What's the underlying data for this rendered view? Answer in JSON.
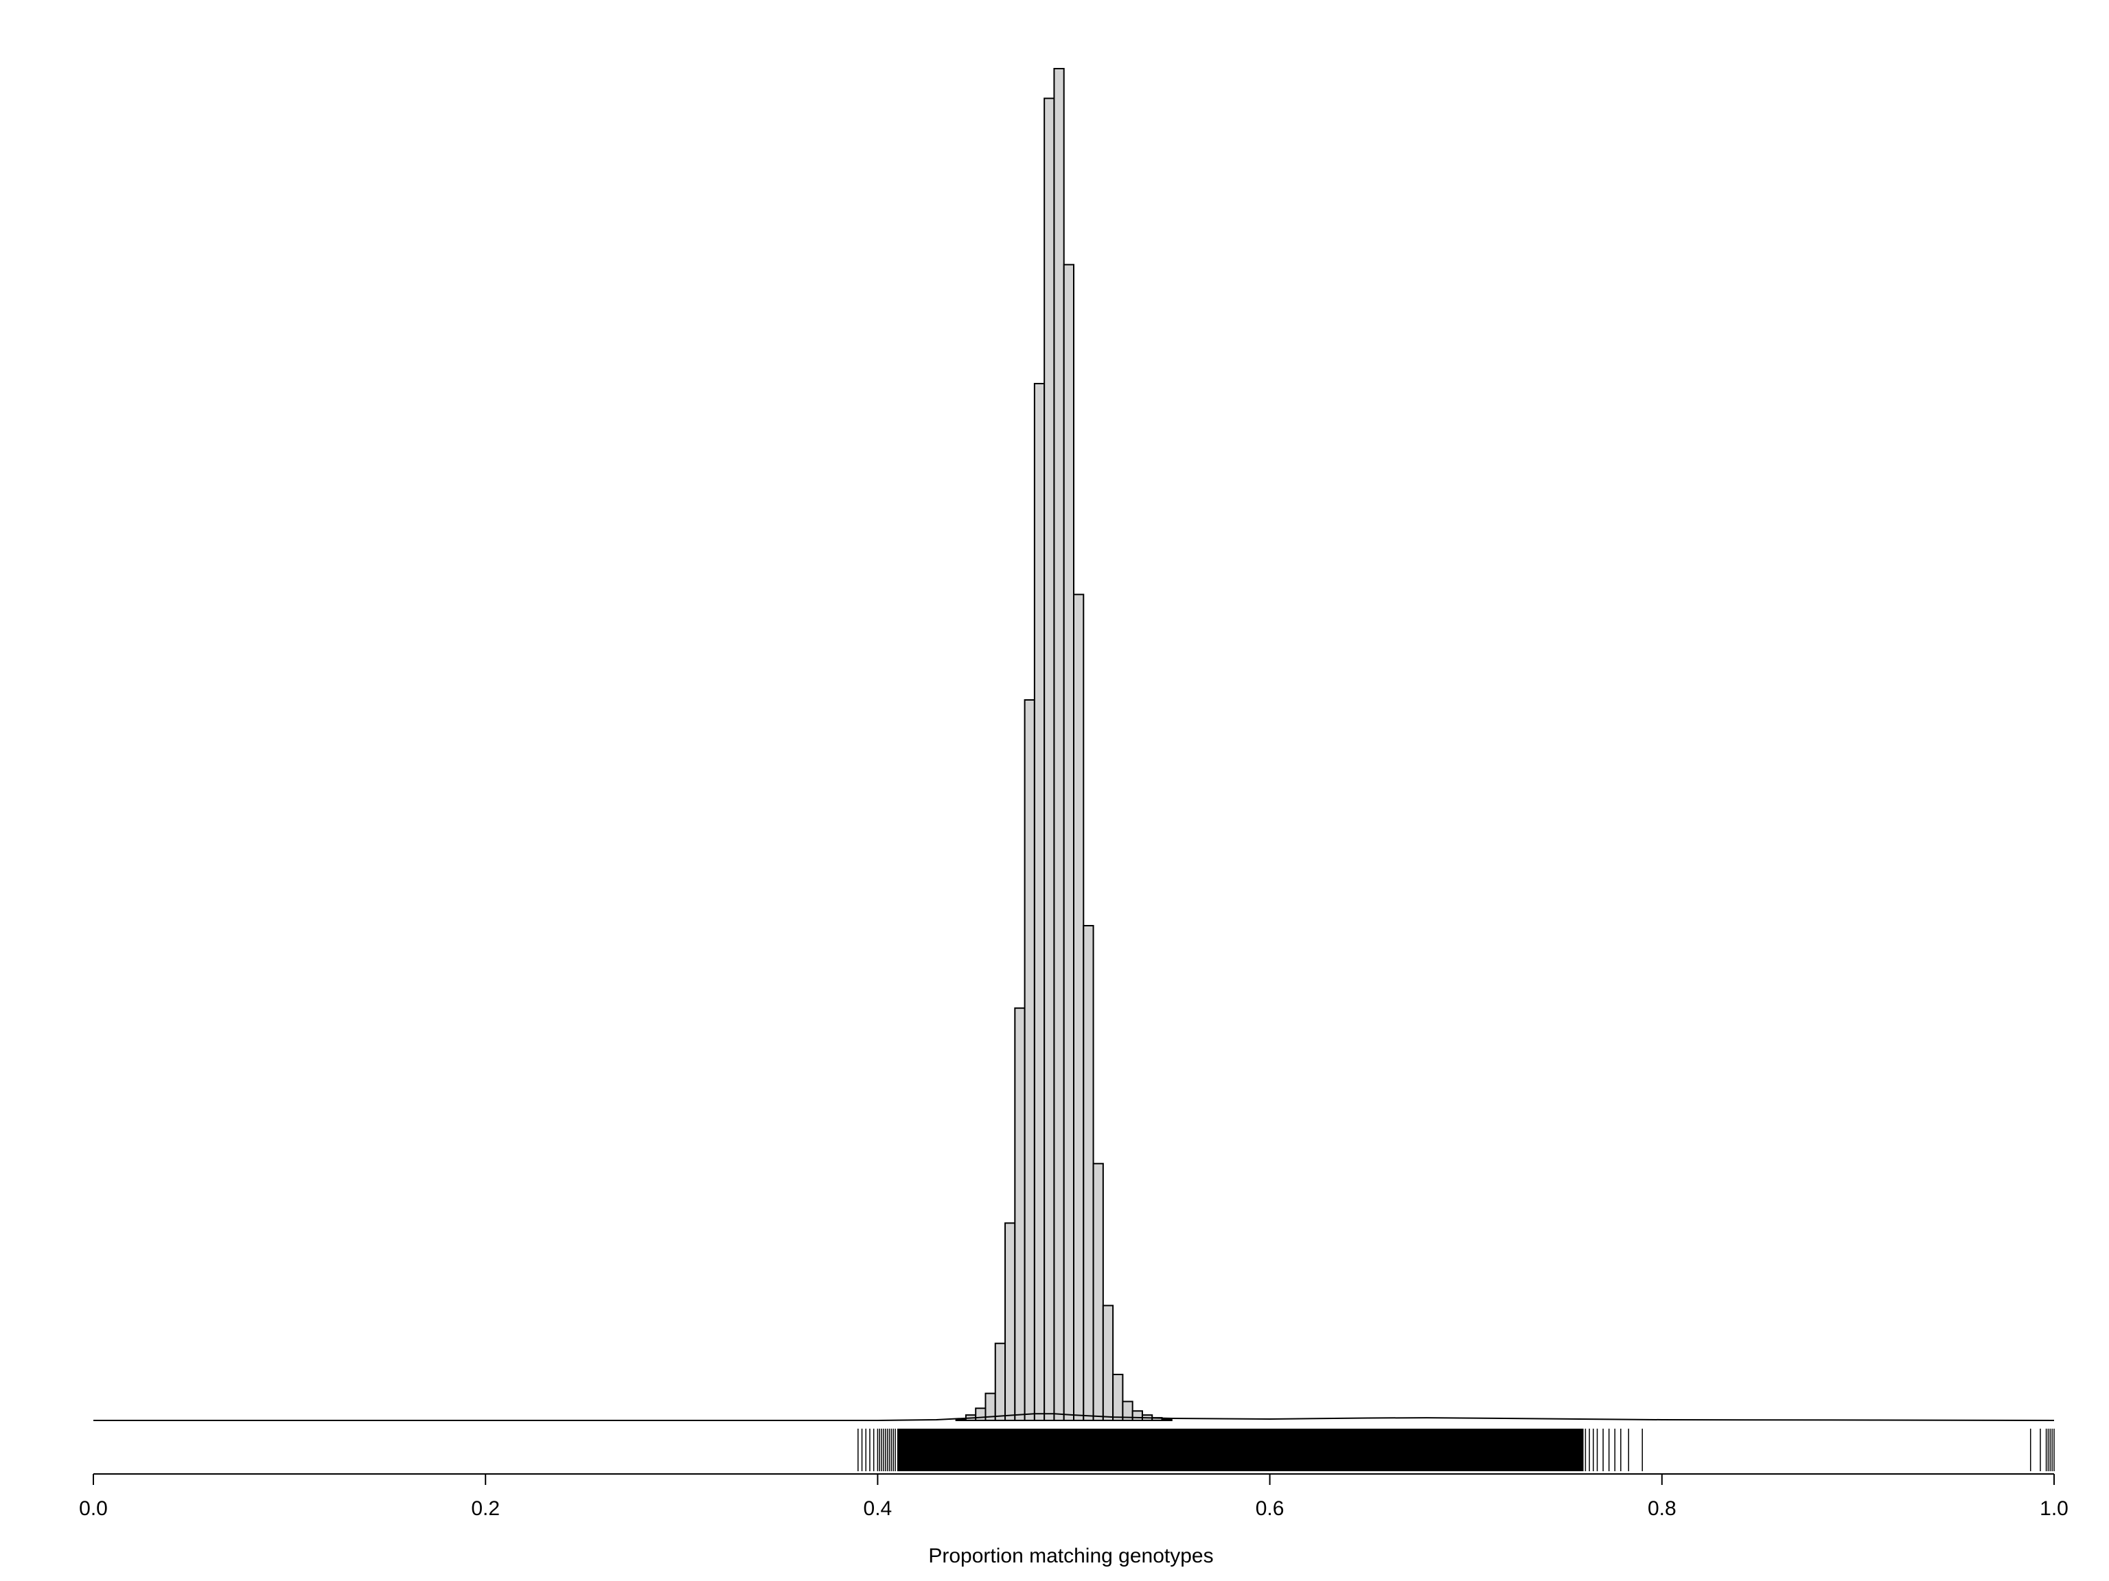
{
  "chart_data": {
    "type": "bar",
    "subtype": "histogram-with-rug",
    "title": "",
    "xlabel": "Proportion matching genotypes",
    "ylabel": "",
    "xlim": [
      0.0,
      1.0
    ],
    "ylim": [
      0,
      1
    ],
    "x_ticks": [
      0.0,
      0.2,
      0.4,
      0.6,
      0.8,
      1.0
    ],
    "x_tick_labels": [
      "0.0",
      "0.2",
      "0.4",
      "0.6",
      "0.8",
      "1.0"
    ],
    "grid": false,
    "legend": "none",
    "bar_fill": "#d3d3d3",
    "bar_stroke": "#000000",
    "bin_width": 0.005,
    "bins_start": [
      0.44,
      0.445,
      0.45,
      0.455,
      0.46,
      0.465,
      0.47,
      0.475,
      0.48,
      0.485,
      0.49,
      0.495,
      0.5,
      0.505,
      0.51,
      0.515,
      0.52,
      0.525,
      0.53,
      0.535,
      0.54,
      0.545
    ],
    "values": [
      0.001,
      0.004,
      0.009,
      0.02,
      0.057,
      0.146,
      0.305,
      0.533,
      0.767,
      0.978,
      1.0,
      0.855,
      0.611,
      0.366,
      0.19,
      0.085,
      0.034,
      0.014,
      0.007,
      0.004,
      0.002,
      0.001
    ],
    "density_curve": {
      "x": [
        0.0,
        0.4,
        0.43,
        0.45,
        0.47,
        0.48,
        0.49,
        0.5,
        0.52,
        0.55,
        0.6,
        0.65,
        0.68,
        0.72,
        0.8,
        1.0
      ],
      "y": [
        0.0,
        0.0,
        0.0005,
        0.002,
        0.004,
        0.005,
        0.005,
        0.004,
        0.0025,
        0.0015,
        0.001,
        0.0018,
        0.002,
        0.0015,
        0.0005,
        0.0
      ]
    },
    "rug": {
      "dense_range": [
        0.41,
        0.76
      ],
      "sparse_left": [
        0.39,
        0.392,
        0.394,
        0.396,
        0.398,
        0.4,
        0.401,
        0.402,
        0.403,
        0.404,
        0.405,
        0.406,
        0.407,
        0.408,
        0.409
      ],
      "sparse_mid": [
        0.605,
        0.61,
        0.614,
        0.617,
        0.62,
        0.624,
        0.628,
        0.631
      ],
      "sparse_right": [
        0.755,
        0.757,
        0.759,
        0.761,
        0.763,
        0.765,
        0.767,
        0.77,
        0.773,
        0.776,
        0.779,
        0.783,
        0.79
      ],
      "sparse_far": [
        0.988,
        0.993,
        0.996,
        0.997,
        0.998,
        0.999,
        1.0
      ]
    }
  }
}
